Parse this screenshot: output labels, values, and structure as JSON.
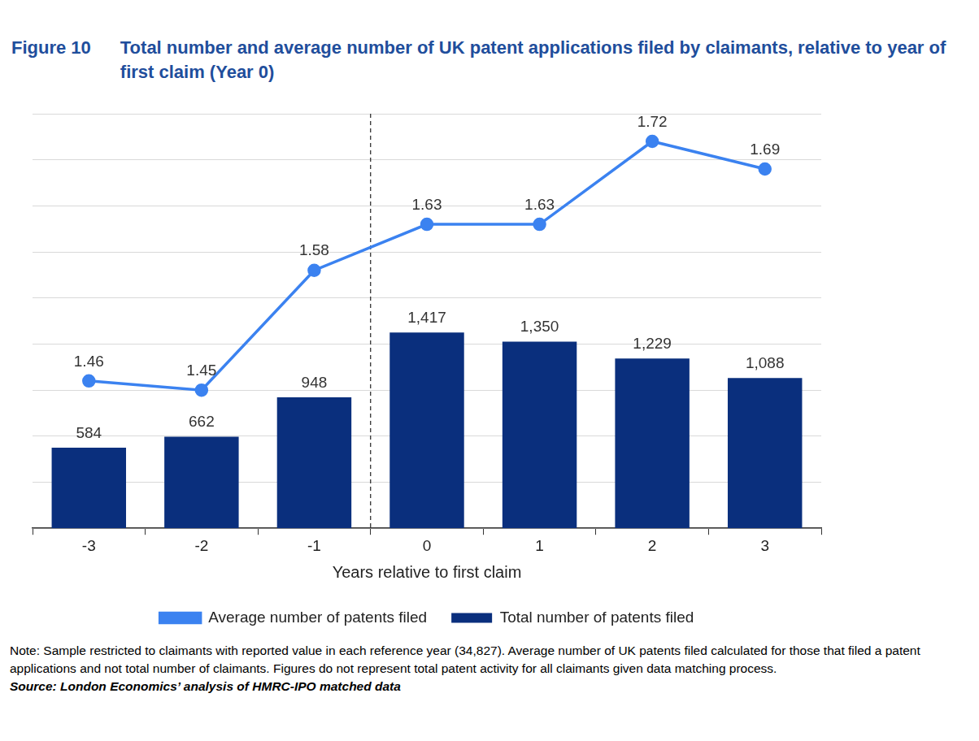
{
  "chart_data": {
    "type": "bar",
    "title": "Figure 10",
    "subtitle": "Total number and average number of UK patent applications filed by claimants, relative to year of first claim (Year 0)",
    "x_label": "Years relative to first claim",
    "categories": [
      "-3",
      "-2",
      "-1",
      "0",
      "1",
      "2",
      "3"
    ],
    "series": [
      {
        "name": "Total number of patents filed",
        "type": "bar",
        "color": "#0a2f7d",
        "axis": "y2",
        "values": [
          584,
          662,
          948,
          1417,
          1350,
          1229,
          1088
        ],
        "value_labels": [
          "584",
          "662",
          "948",
          "1,417",
          "1,350",
          "1,229",
          "1,088"
        ]
      },
      {
        "name": "Average number of patents filed",
        "type": "line",
        "color": "#3b82f0",
        "marker": "circle",
        "line_style": "solid",
        "values": [
          1.46,
          1.45,
          1.58,
          1.63,
          1.63,
          1.72,
          1.69
        ]
      }
    ],
    "ylim": [
      1.3,
      1.75
    ],
    "yticks": [
      1.3,
      1.35,
      1.4,
      1.45,
      1.5,
      1.55,
      1.6,
      1.65,
      1.7,
      1.75
    ],
    "y2lim": [
      0,
      3000
    ],
    "y2ticks": [
      0,
      500,
      1000,
      1500,
      2000,
      2500,
      3000
    ],
    "grid": true,
    "legend": "bottom",
    "data_labels": true,
    "tick_labels": "x",
    "annotations": [
      "Note: Sample restricted to claimants with reported value in each reference year (34,827). Average number of UK patents filed calculated for those that filed a patent applications and not total number of claimants. Figures do not represent total patent activity for all claimants given data matching process.",
      "Source: London Economics’ analysis of HMRC-IPO matched data"
    ]
  }
}
